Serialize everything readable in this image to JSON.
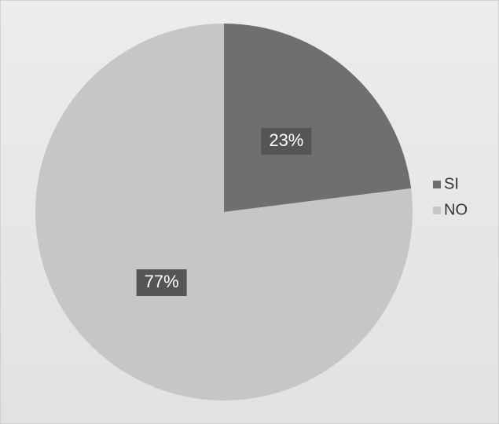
{
  "chart_data": {
    "type": "pie",
    "categories": [
      "SI",
      "NO"
    ],
    "values": [
      23,
      77
    ],
    "value_labels": [
      "23%",
      "77%"
    ],
    "colors": [
      "#6f6f6f",
      "#c6c6c6"
    ],
    "legend": "right"
  }
}
